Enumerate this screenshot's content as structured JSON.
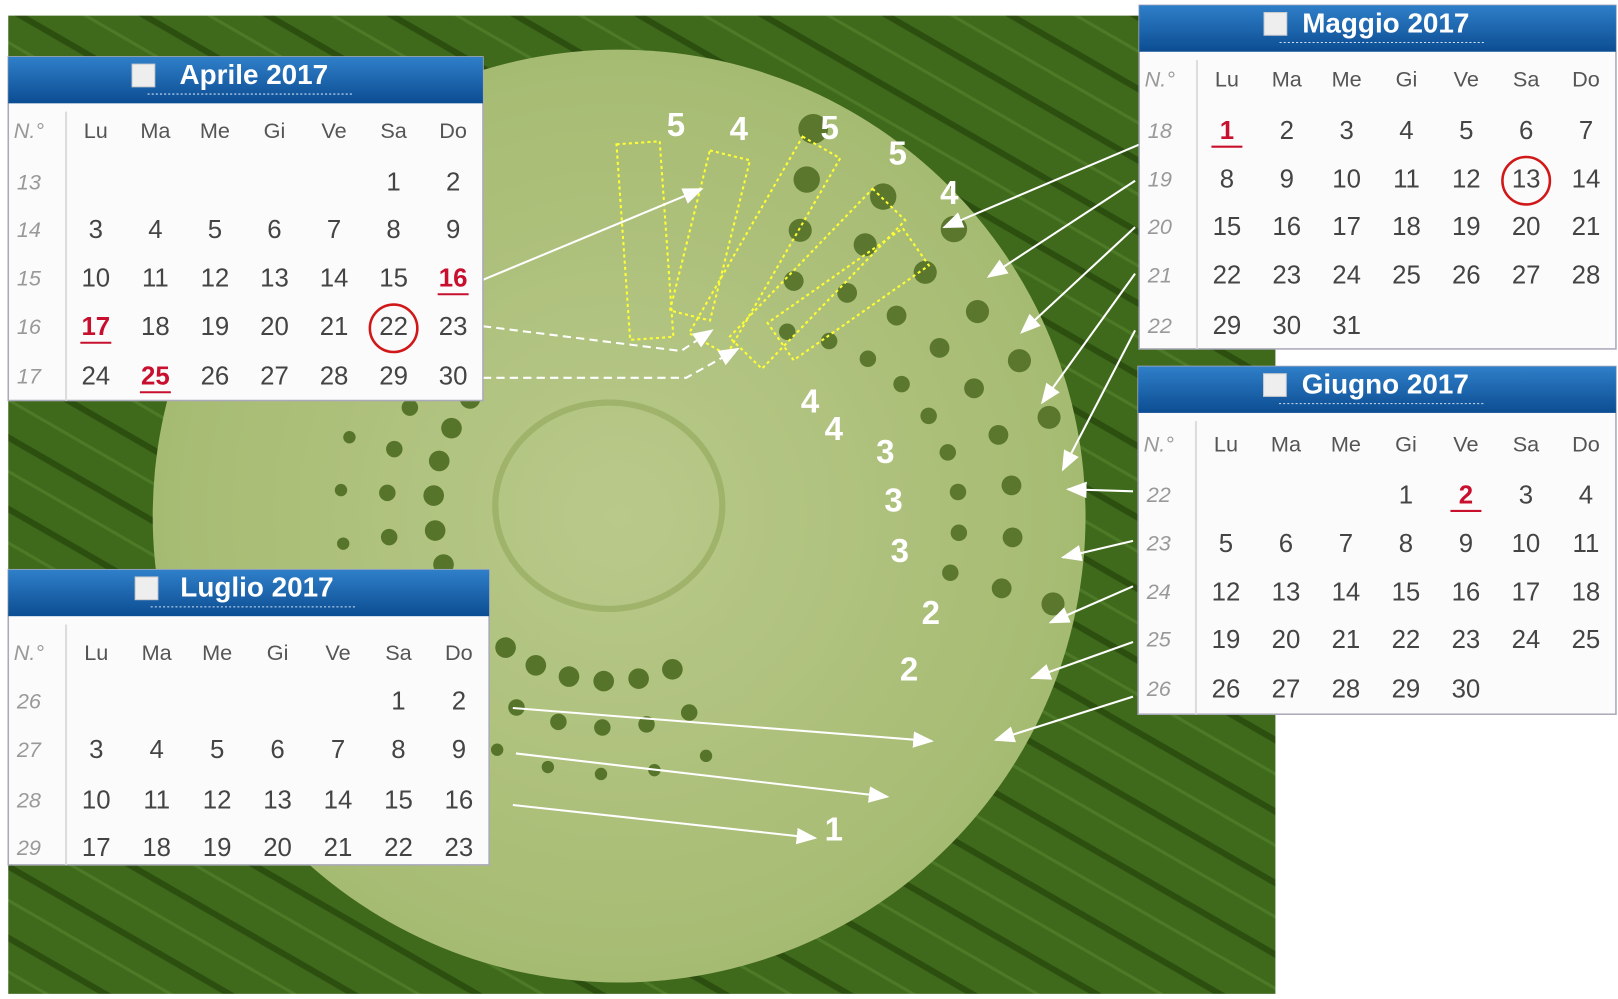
{
  "calendars": [
    {
      "title": "Aprile 2017",
      "header": [
        "N.°",
        "Lu",
        "Ma",
        "Me",
        "Gi",
        "Ve",
        "Sa",
        "Do"
      ],
      "weeks": [
        {
          "number": "13",
          "days": [
            null,
            null,
            null,
            null,
            null,
            "1",
            "2"
          ]
        },
        {
          "number": "14",
          "days": [
            "3",
            "4",
            "5",
            "6",
            "7",
            "8",
            "9"
          ]
        },
        {
          "number": "15",
          "days": [
            "10",
            "11",
            "12",
            "13",
            "14",
            "15",
            "16"
          ]
        },
        {
          "number": "16",
          "days": [
            "17",
            "18",
            "19",
            "20",
            "21",
            "22",
            "23"
          ]
        },
        {
          "number": "17",
          "days": [
            "24",
            "25",
            "26",
            "27",
            "28",
            "29",
            "30"
          ]
        }
      ],
      "highlighted": [
        "16",
        "17",
        "25"
      ],
      "circled": [
        "22"
      ]
    },
    {
      "title": "Maggio 2017",
      "header": [
        "N.°",
        "Lu",
        "Ma",
        "Me",
        "Gi",
        "Ve",
        "Sa",
        "Do"
      ],
      "weeks": [
        {
          "number": "18",
          "days": [
            "1",
            "2",
            "3",
            "4",
            "5",
            "6",
            "7"
          ]
        },
        {
          "number": "19",
          "days": [
            "8",
            "9",
            "10",
            "11",
            "12",
            "13",
            "14"
          ]
        },
        {
          "number": "20",
          "days": [
            "15",
            "16",
            "17",
            "18",
            "19",
            "20",
            "21"
          ]
        },
        {
          "number": "21",
          "days": [
            "22",
            "23",
            "24",
            "25",
            "26",
            "27",
            "28"
          ]
        },
        {
          "number": "22",
          "days": [
            "29",
            "30",
            "31",
            null,
            null,
            null,
            null
          ]
        }
      ],
      "highlighted": [
        "1"
      ],
      "circled": [
        "13"
      ]
    },
    {
      "title": "Giugno 2017",
      "header": [
        "N.°",
        "Lu",
        "Ma",
        "Me",
        "Gi",
        "Ve",
        "Sa",
        "Do"
      ],
      "weeks": [
        {
          "number": "22",
          "days": [
            null,
            null,
            null,
            "1",
            "2",
            "3",
            "4"
          ]
        },
        {
          "number": "23",
          "days": [
            "5",
            "6",
            "7",
            "8",
            "9",
            "10",
            "11"
          ]
        },
        {
          "number": "24",
          "days": [
            "12",
            "13",
            "14",
            "15",
            "16",
            "17",
            "18"
          ]
        },
        {
          "number": "25",
          "days": [
            "19",
            "20",
            "21",
            "22",
            "23",
            "24",
            "25"
          ]
        },
        {
          "number": "26",
          "days": [
            "26",
            "27",
            "28",
            "29",
            "30",
            null,
            null
          ]
        }
      ],
      "highlighted": [
        "2"
      ],
      "circled": []
    },
    {
      "title": "Luglio 2017",
      "header": [
        "N.°",
        "Lu",
        "Ma",
        "Me",
        "Gi",
        "Ve",
        "Sa",
        "Do"
      ],
      "weeks": [
        {
          "number": "26",
          "days": [
            null,
            null,
            null,
            null,
            null,
            "1",
            "2"
          ]
        },
        {
          "number": "27",
          "days": [
            "3",
            "4",
            "5",
            "6",
            "7",
            "8",
            "9"
          ]
        },
        {
          "number": "28",
          "days": [
            "10",
            "11",
            "12",
            "13",
            "14",
            "15",
            "16"
          ]
        },
        {
          "number": "29",
          "days": [
            "17",
            "18",
            "19",
            "20",
            "21",
            "22",
            "23"
          ]
        }
      ],
      "highlighted": [],
      "circled": []
    }
  ],
  "annotations": [
    "5",
    "4",
    "5",
    "5",
    "4",
    "4",
    "4",
    "3",
    "3",
    "3",
    "2",
    "2",
    "1"
  ]
}
